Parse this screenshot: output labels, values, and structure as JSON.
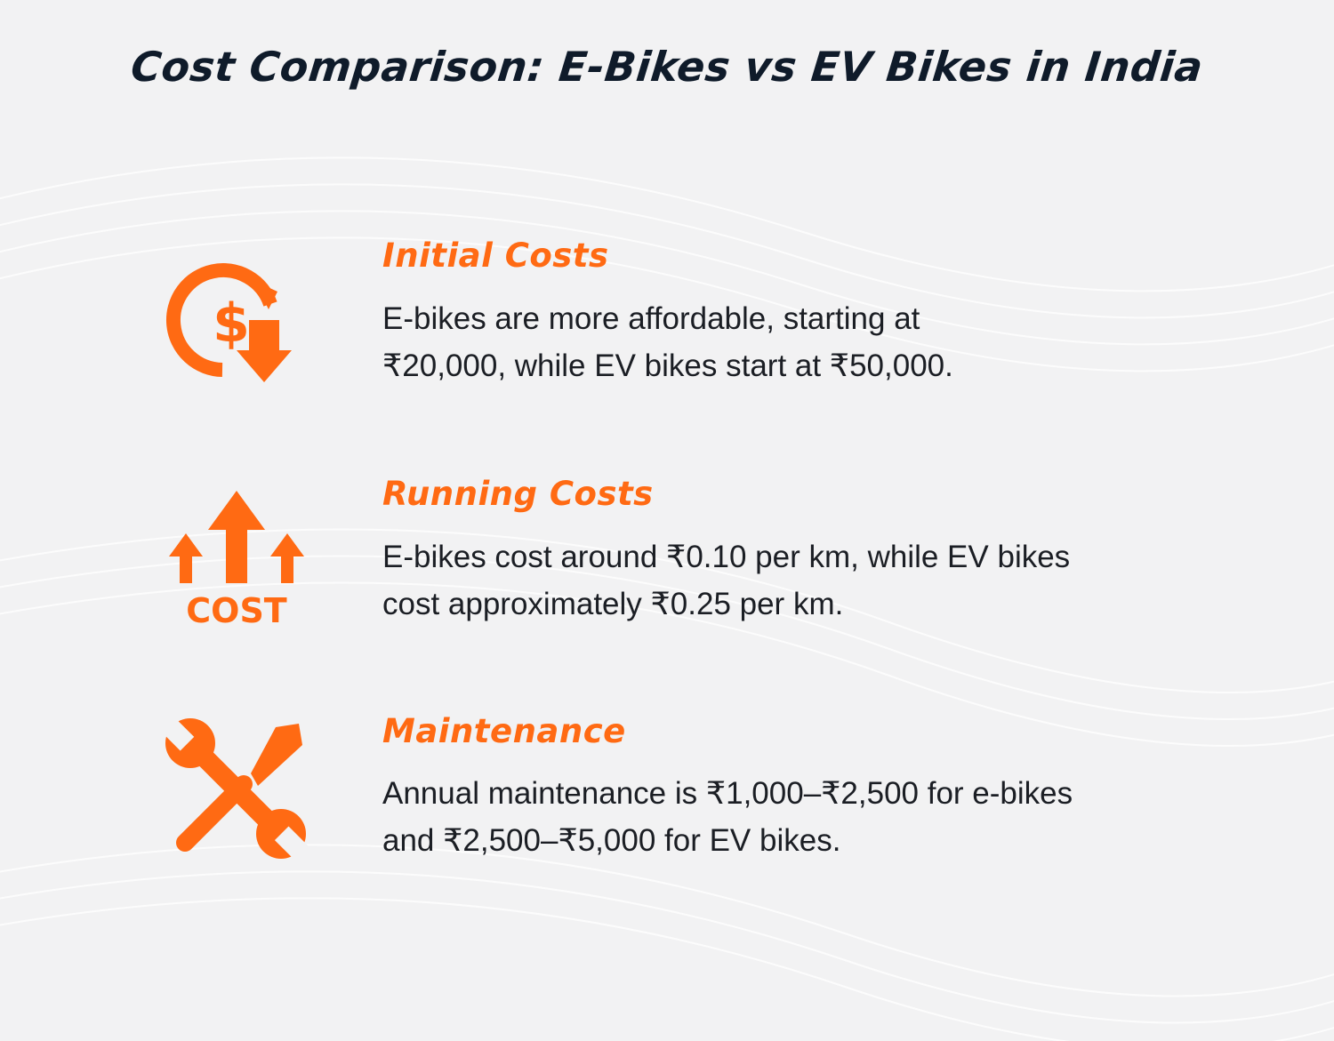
{
  "title": "Cost Comparison: E-Bikes vs EV Bikes in India",
  "accent_color": "#ff6a13",
  "sections": [
    {
      "icon": "dollar-down-icon",
      "heading": "Initial Costs",
      "body_line1": "E-bikes are more affordable, starting at",
      "body_line2": "₹20,000, while EV bikes start at ₹50,000."
    },
    {
      "icon": "cost-up-arrows-icon",
      "icon_label": "COST",
      "heading": "Running Costs",
      "body_line1": "E-bikes cost around ₹0.10 per km, while EV bikes",
      "body_line2": "cost approximately ₹0.25 per km."
    },
    {
      "icon": "wrench-screwdriver-icon",
      "heading": "Maintenance",
      "body_line1": "Annual maintenance is ₹1,000–₹2,500 for e-bikes",
      "body_line2": "and ₹2,500–₹5,000 for EV bikes."
    }
  ]
}
